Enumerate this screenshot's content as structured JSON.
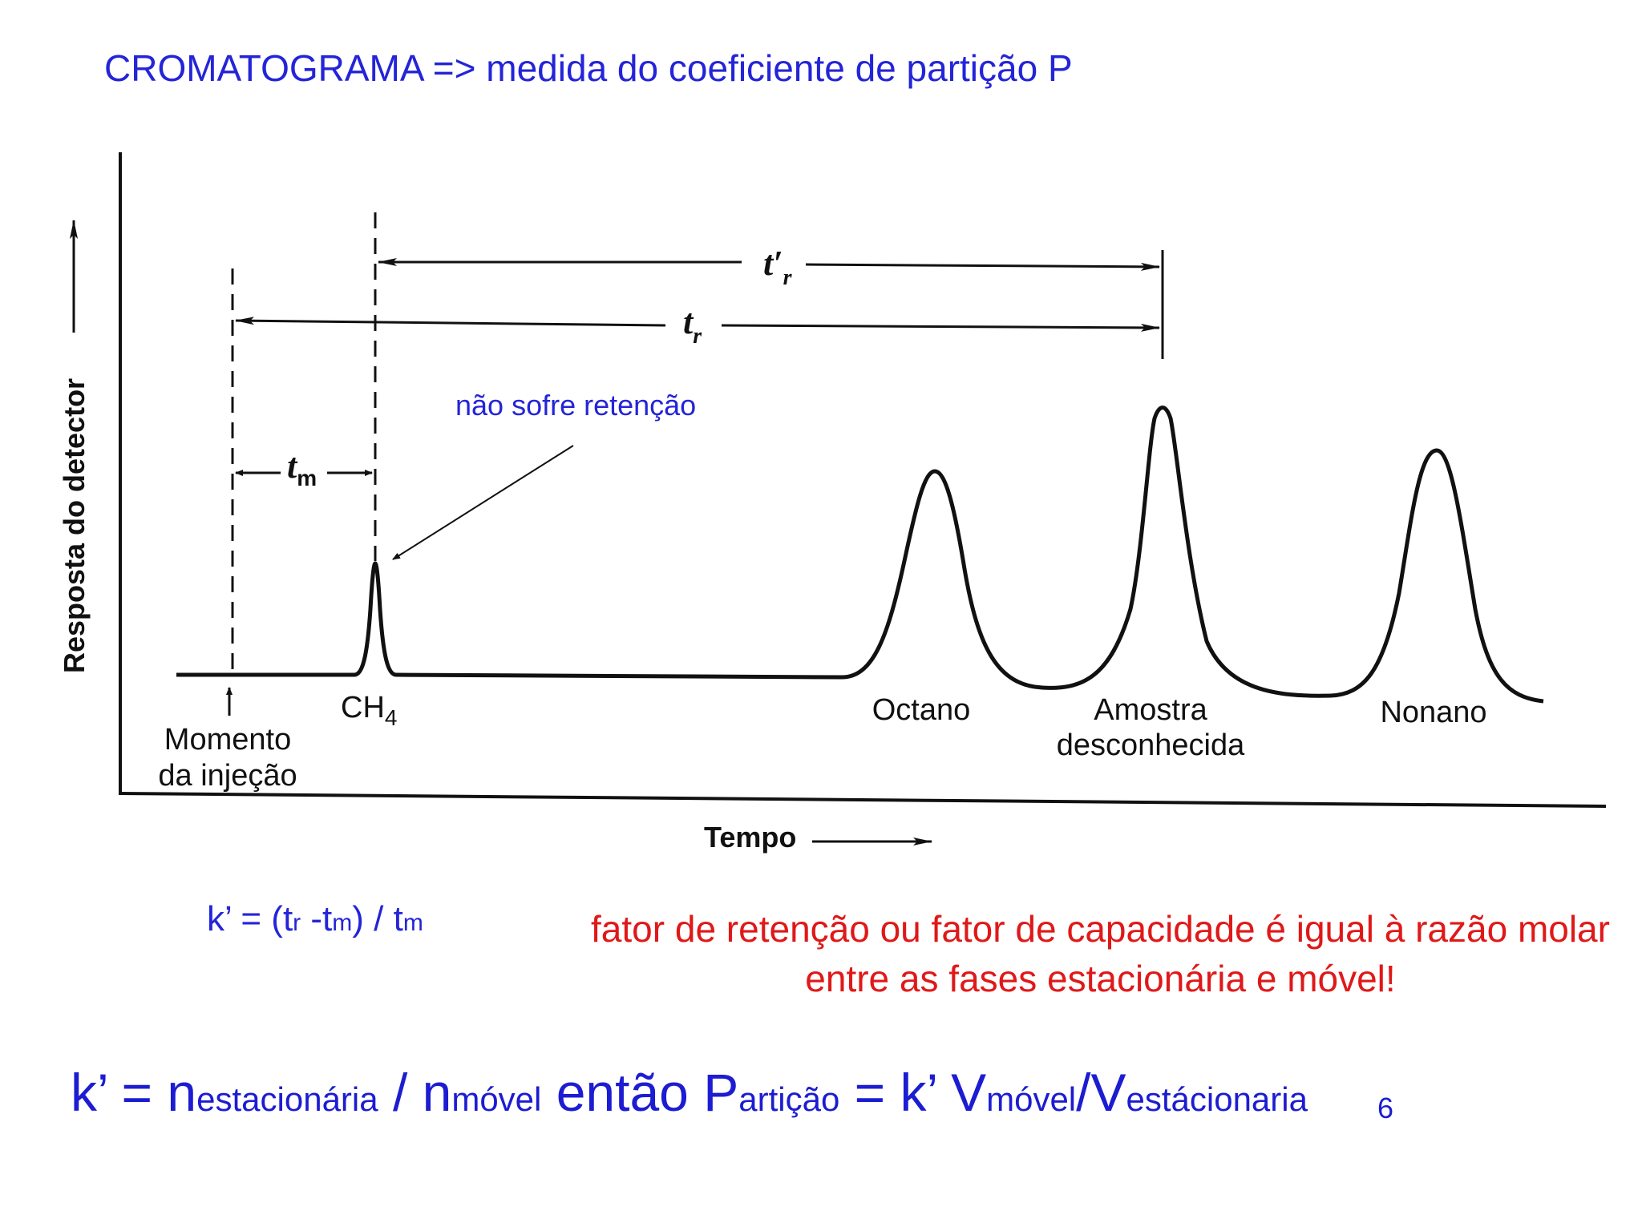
{
  "title": "CROMATOGRAMA => medida do coeficiente de partição P",
  "diagram": {
    "ylabel": "Resposta do detector",
    "xlabel": "Tempo",
    "peaks": [
      {
        "label": "CH",
        "label_subscript": "4"
      },
      {
        "label": "Octano"
      },
      {
        "label_line1": "Amostra",
        "label_line2": "desconhecida"
      },
      {
        "label": "Nonano"
      }
    ],
    "injection_line1": "Momento",
    "injection_line2": "da injeção",
    "note": "não sofre retenção",
    "tm_base": "t",
    "tm_sub": "m",
    "tr_base": "t",
    "tr_sub": "r",
    "trp_base": "t′",
    "trp_sub": "r"
  },
  "kprime": {
    "lhs": "k’ = (t",
    "sub_r": "r",
    "mid": " -t",
    "sub_m": "m",
    "rest": ") / t",
    "sub_m2": "m"
  },
  "definition": "fator de retenção ou fator de capacidade é igual à razão molar entre as fases estacionária e móvel!",
  "partition": {
    "p1": "k’ = n",
    "s1": "estacionária",
    "p2": " / n",
    "s2": "móvel",
    "p3": "  então P",
    "s3": "artição",
    "p4": " = k’ V",
    "s4": "móvel",
    "p5": "/V",
    "s5": "estácionaria"
  },
  "page_number": "6"
}
